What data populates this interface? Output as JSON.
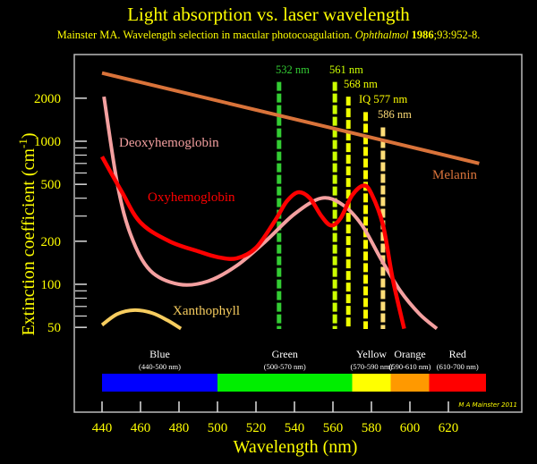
{
  "chart_data": {
    "type": "line",
    "title": "Light absorption vs. laser wavelength",
    "subtitle": {
      "authors": "Mainster MA. Wavelength selection in macular photocoagulation.",
      "journal": "Ophthalmol",
      "year": "1986",
      "ref": ";93:952-8."
    },
    "xlabel": "Wavelength (nm)",
    "ylabel": "Extinction coefficient (cm",
    "ylabel_sup": "-1",
    "ylabel_end": ")",
    "xlim": [
      440,
      640
    ],
    "ylim": [
      45,
      4000
    ],
    "yscale": "log",
    "x_ticks": [
      440,
      460,
      480,
      500,
      520,
      540,
      560,
      580,
      600,
      620
    ],
    "y_ticks": [
      50,
      100,
      200,
      500,
      1000,
      2000
    ],
    "y_minor_ticks": [
      60,
      70,
      80,
      90,
      300,
      400,
      600,
      700,
      800,
      900
    ],
    "series": [
      {
        "name": "Melanin",
        "color": "#d9733a",
        "label_pos": [
          498,
          200
        ],
        "points": [
          [
            440,
            3000
          ],
          [
            636,
            700
          ]
        ]
      },
      {
        "name": "Deoxyhemoglobin",
        "color": "#f4a0a0",
        "label_pos": [
          450,
          900
        ],
        "points": [
          [
            441,
            2050
          ],
          [
            448,
            500
          ],
          [
            455,
            220
          ],
          [
            465,
            125
          ],
          [
            480,
            100
          ],
          [
            495,
            105
          ],
          [
            510,
            135
          ],
          [
            525,
            200
          ],
          [
            540,
            310
          ],
          [
            554,
            400
          ],
          [
            565,
            360
          ],
          [
            575,
            260
          ],
          [
            585,
            150
          ],
          [
            595,
            90
          ],
          [
            605,
            62
          ],
          [
            614,
            49
          ]
        ]
      },
      {
        "name": "Oxyhemoglobin",
        "color": "#ff0000",
        "label_pos": [
          478,
          450
        ],
        "points": [
          [
            440,
            780
          ],
          [
            450,
            450
          ],
          [
            460,
            270
          ],
          [
            475,
            200
          ],
          [
            490,
            170
          ],
          [
            500,
            155
          ],
          [
            510,
            152
          ],
          [
            520,
            180
          ],
          [
            530,
            280
          ],
          [
            536,
            380
          ],
          [
            542,
            440
          ],
          [
            548,
            400
          ],
          [
            554,
            300
          ],
          [
            559,
            258
          ],
          [
            564,
            290
          ],
          [
            570,
            420
          ],
          [
            576,
            490
          ],
          [
            580,
            430
          ],
          [
            586,
            260
          ],
          [
            591,
            110
          ],
          [
            597,
            49
          ]
        ]
      },
      {
        "name": "Xanthophyll",
        "color": "#f7cd5f",
        "label_pos": [
          478,
          70
        ],
        "points": [
          [
            440,
            52
          ],
          [
            448,
            62
          ],
          [
            457,
            66
          ],
          [
            466,
            63
          ],
          [
            474,
            56
          ],
          [
            481,
            49
          ]
        ]
      }
    ],
    "lasers": [
      {
        "label": "532 nm",
        "wavelength": 532,
        "color": "#33cc33",
        "top_value": 2600
      },
      {
        "label": "561 nm",
        "wavelength": 561,
        "color": "#ccff00",
        "top_value": 2600
      },
      {
        "label": "568 nm",
        "wavelength": 568,
        "color": "#eeff00",
        "top_value": 2050
      },
      {
        "label": "IQ 577 nm",
        "wavelength": 577,
        "color": "#ffff00",
        "top_value": 1600
      },
      {
        "label": "586 nm",
        "wavelength": 586,
        "color": "#ffdd77",
        "top_value": 1250
      }
    ],
    "color_bands": [
      {
        "name": "Blue",
        "range": "(440-500 nm)",
        "from": 440,
        "to": 500,
        "color": "#0000ff"
      },
      {
        "name": "Green",
        "range": "(500-570 nm)",
        "from": 500,
        "to": 570,
        "color": "#00ee00"
      },
      {
        "name": "Yellow",
        "range": "(570-590 nm)",
        "from": 570,
        "to": 590,
        "color": "#ffff00"
      },
      {
        "name": "Orange",
        "range": "(590-610 nm)",
        "from": 590,
        "to": 610,
        "color": "#ff9900"
      },
      {
        "name": "Red",
        "range": "(610-700 nm)",
        "from": 610,
        "to": 640,
        "color": "#ff0000"
      }
    ],
    "credit": "M A Mainster 2011",
    "grid": false
  }
}
